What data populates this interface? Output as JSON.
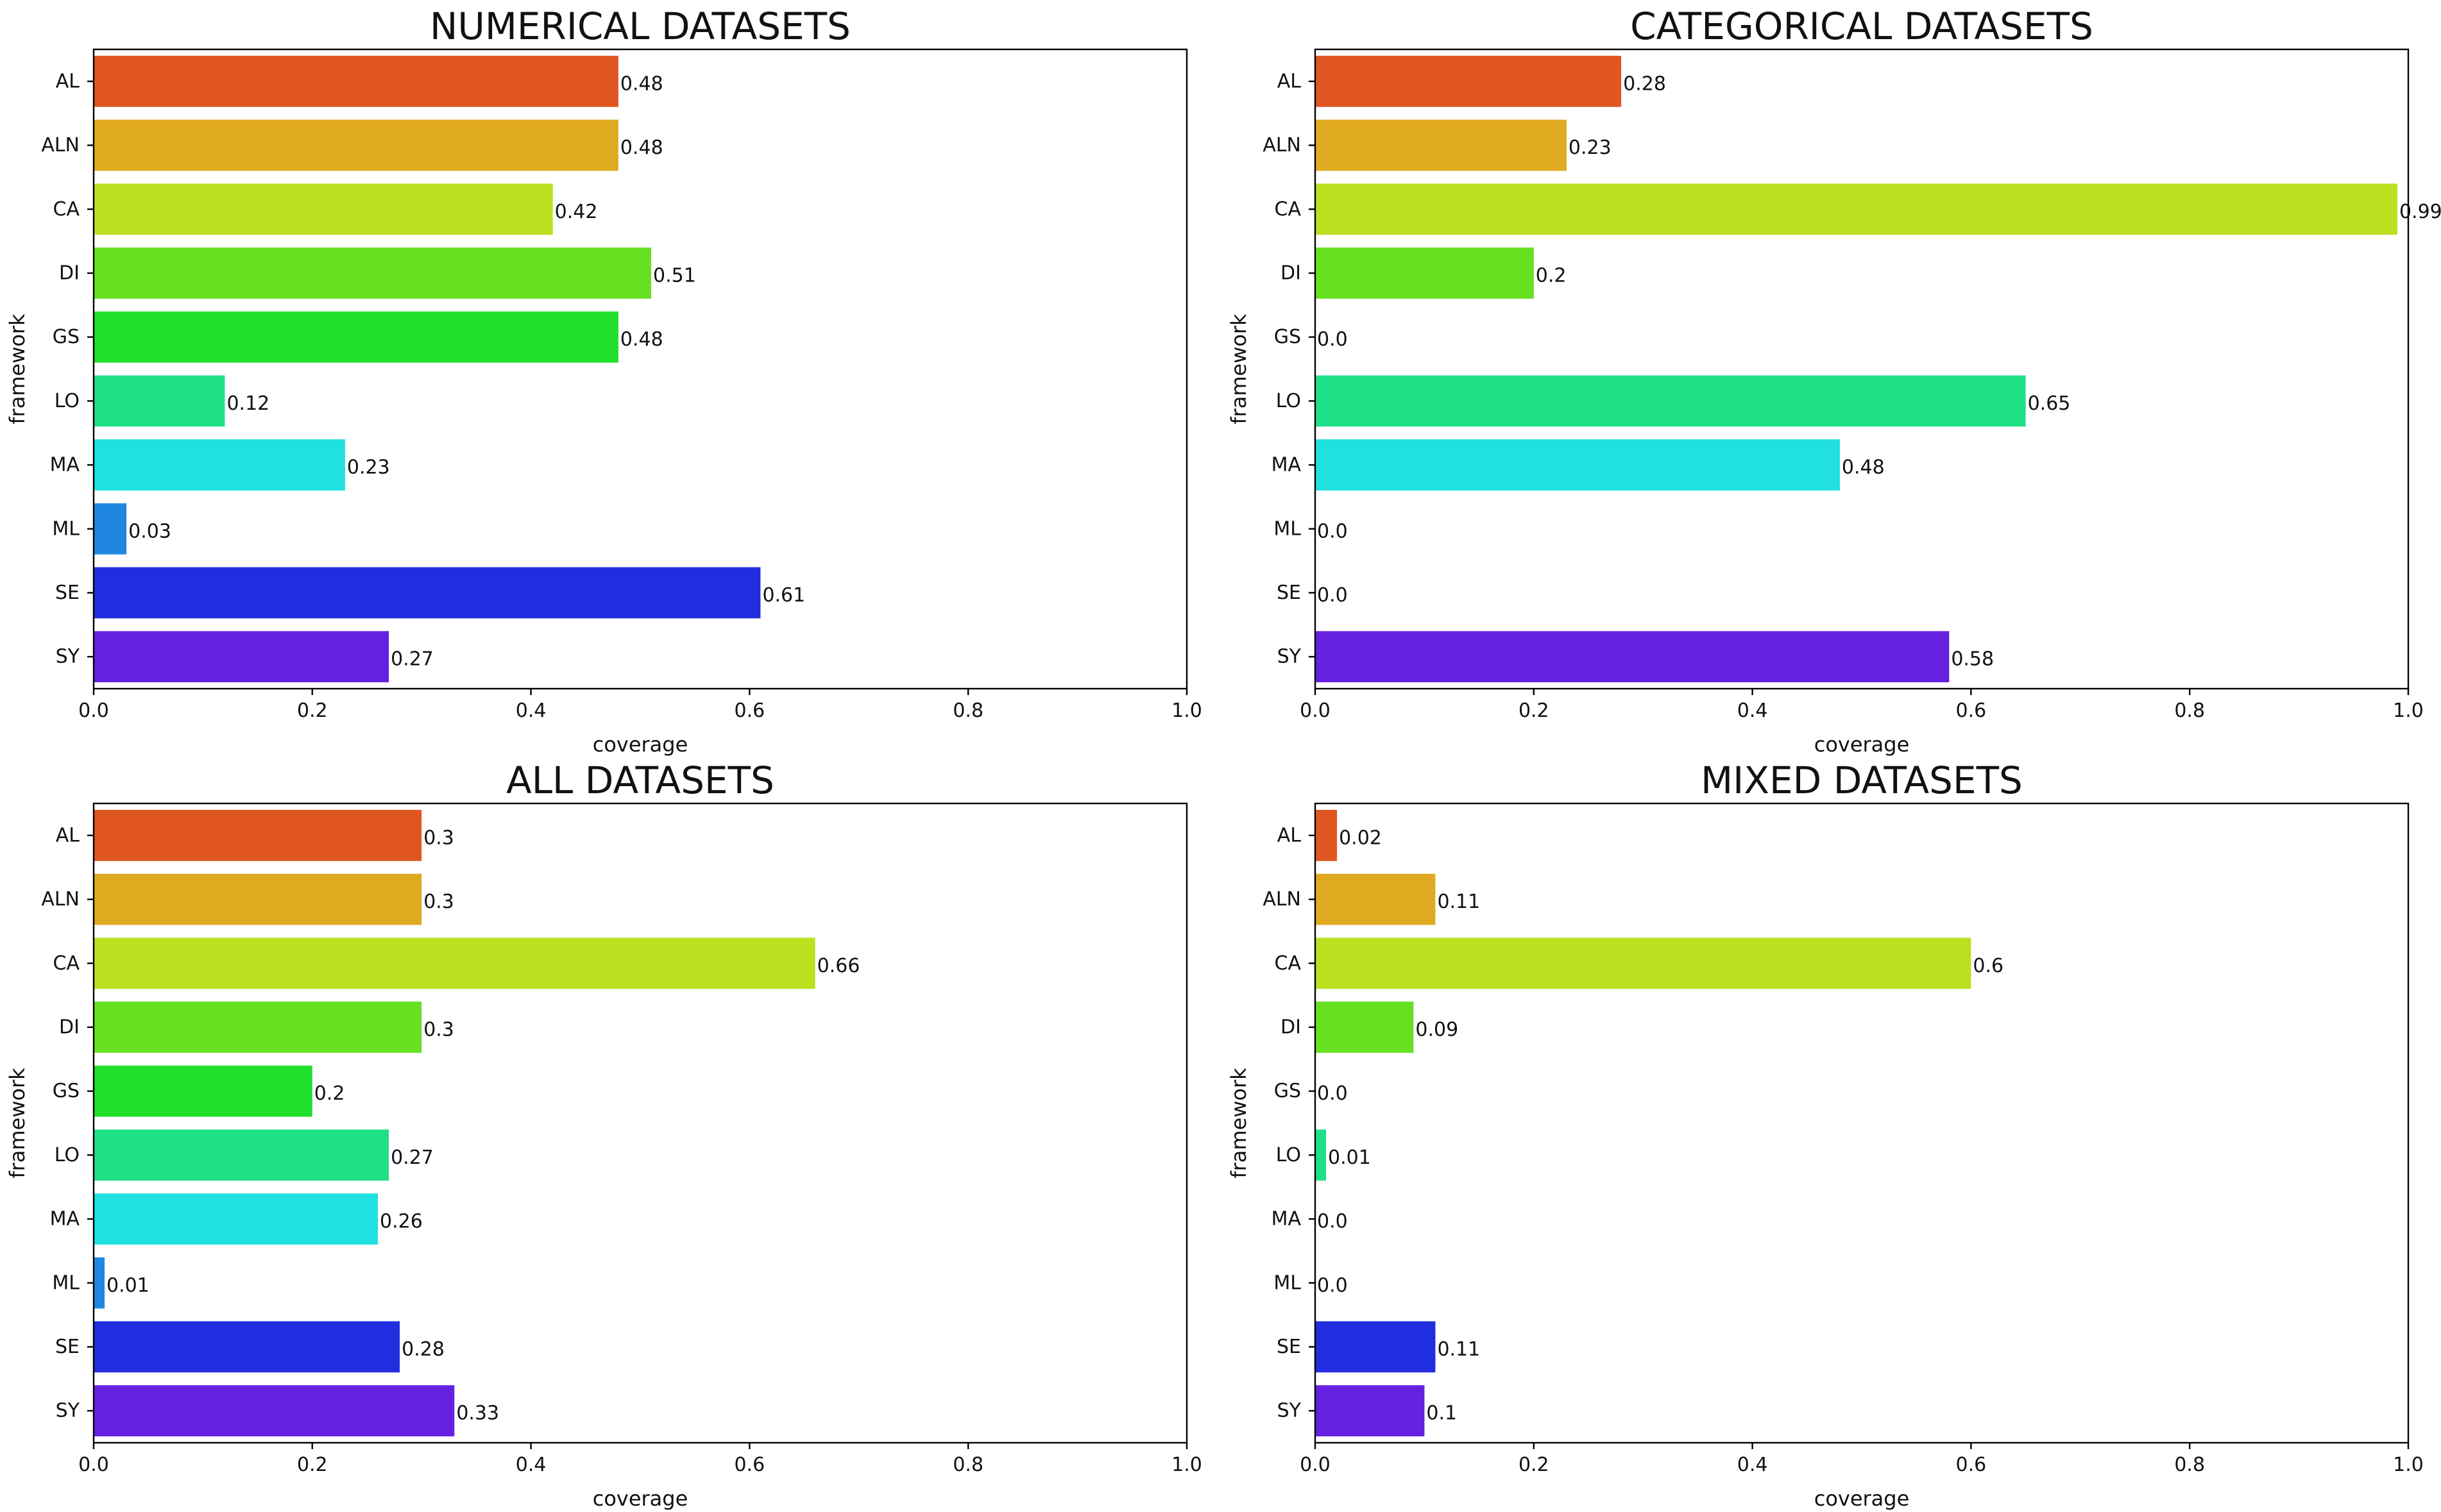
{
  "chart_data": [
    {
      "type": "bar",
      "orientation": "horizontal",
      "title": "NUMERICAL DATASETS",
      "xlabel": "coverage",
      "ylabel": "framework",
      "xlim": [
        0,
        1.0
      ],
      "xticks": [
        "0.0",
        "0.2",
        "0.4",
        "0.6",
        "0.8",
        "1.0"
      ],
      "categories": [
        "AL",
        "ALN",
        "CA",
        "DI",
        "GS",
        "LO",
        "MA",
        "ML",
        "SE",
        "SY"
      ],
      "values": [
        0.48,
        0.48,
        0.42,
        0.51,
        0.48,
        0.12,
        0.23,
        0.03,
        0.61,
        0.27
      ],
      "labels": [
        "0.48",
        "0.48",
        "0.42",
        "0.51",
        "0.48",
        "0.12",
        "0.23",
        "0.03",
        "0.61",
        "0.27"
      ],
      "grid": false
    },
    {
      "type": "bar",
      "orientation": "horizontal",
      "title": "CATEGORICAL DATASETS",
      "xlabel": "coverage",
      "ylabel": "framework",
      "xlim": [
        0,
        1.0
      ],
      "xticks": [
        "0.0",
        "0.2",
        "0.4",
        "0.6",
        "0.8",
        "1.0"
      ],
      "categories": [
        "AL",
        "ALN",
        "CA",
        "DI",
        "GS",
        "LO",
        "MA",
        "ML",
        "SE",
        "SY"
      ],
      "values": [
        0.28,
        0.23,
        0.99,
        0.2,
        0.0,
        0.65,
        0.48,
        0.0,
        0.0,
        0.58
      ],
      "labels": [
        "0.28",
        "0.23",
        "0.99",
        "0.2",
        "0.0",
        "0.65",
        "0.48",
        "0.0",
        "0.0",
        "0.58"
      ],
      "grid": false
    },
    {
      "type": "bar",
      "orientation": "horizontal",
      "title": "ALL DATASETS",
      "xlabel": "coverage",
      "ylabel": "framework",
      "xlim": [
        0,
        1.0
      ],
      "xticks": [
        "0.0",
        "0.2",
        "0.4",
        "0.6",
        "0.8",
        "1.0"
      ],
      "categories": [
        "AL",
        "ALN",
        "CA",
        "DI",
        "GS",
        "LO",
        "MA",
        "ML",
        "SE",
        "SY"
      ],
      "values": [
        0.3,
        0.3,
        0.66,
        0.3,
        0.2,
        0.27,
        0.26,
        0.01,
        0.28,
        0.33
      ],
      "labels": [
        "0.3",
        "0.3",
        "0.66",
        "0.3",
        "0.2",
        "0.27",
        "0.26",
        "0.01",
        "0.28",
        "0.33"
      ],
      "grid": false
    },
    {
      "type": "bar",
      "orientation": "horizontal",
      "title": "MIXED DATASETS",
      "xlabel": "coverage",
      "ylabel": "framework",
      "xlim": [
        0,
        1.0
      ],
      "xticks": [
        "0.0",
        "0.2",
        "0.4",
        "0.6",
        "0.8",
        "1.0"
      ],
      "categories": [
        "AL",
        "ALN",
        "CA",
        "DI",
        "GS",
        "LO",
        "MA",
        "ML",
        "SE",
        "SY"
      ],
      "values": [
        0.02,
        0.11,
        0.6,
        0.09,
        0.0,
        0.01,
        0.0,
        0.0,
        0.11,
        0.1
      ],
      "labels": [
        "0.02",
        "0.11",
        "0.6",
        "0.09",
        "0.0",
        "0.01",
        "0.0",
        "0.0",
        "0.11",
        "0.1"
      ],
      "grid": false
    }
  ],
  "palette": [
    "#e05620",
    "#e0aa20",
    "#bae020",
    "#66e020",
    "#20e02e",
    "#20e087",
    "#20e0e0",
    "#2087e0",
    "#202ee0",
    "#6620e0"
  ]
}
